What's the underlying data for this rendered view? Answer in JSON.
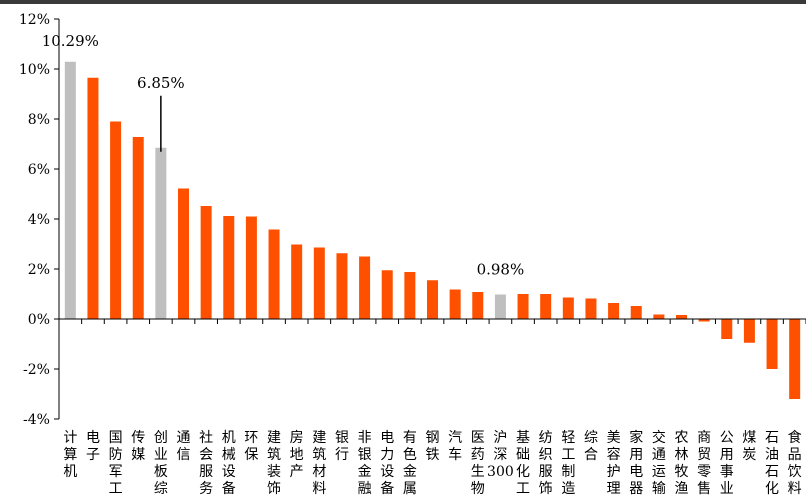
{
  "chart_data": {
    "type": "bar",
    "title": "",
    "xlabel": "",
    "ylabel": "",
    "ylim": [
      -4,
      12
    ],
    "yticks": [
      -4,
      -2,
      0,
      2,
      4,
      6,
      8,
      10,
      12
    ],
    "ytick_labels": [
      "-4%",
      "-2%",
      "0%",
      "2%",
      "4%",
      "6%",
      "8%",
      "10%",
      "12%"
    ],
    "categories": [
      "计算机",
      "电子",
      "国防军工",
      "传媒",
      "创业板综",
      "通信",
      "社会服务",
      "机械设备",
      "环保",
      "建筑装饰",
      "房地产",
      "建筑材料",
      "银行",
      "非银金融",
      "电力设备",
      "有色金属",
      "钢铁",
      "汽车",
      "医药生物",
      "沪深300",
      "基础化工",
      "纺织服饰",
      "轻工制造",
      "综合",
      "美容护理",
      "家用电器",
      "交通运输",
      "农林牧渔",
      "商贸零售",
      "公用事业",
      "煤炭",
      "石油石化",
      "食品饮料"
    ],
    "values": [
      10.29,
      9.65,
      7.9,
      7.28,
      6.85,
      5.22,
      4.52,
      4.12,
      4.1,
      3.58,
      2.98,
      2.86,
      2.63,
      2.5,
      1.95,
      1.88,
      1.55,
      1.18,
      1.08,
      0.98,
      1.0,
      1.0,
      0.86,
      0.82,
      0.64,
      0.52,
      0.18,
      0.16,
      -0.1,
      -0.8,
      -0.95,
      -2.0,
      -3.2
    ],
    "highlight": [
      "计算机",
      "创业板综",
      "沪深300"
    ],
    "annotations": [
      {
        "category": "计算机",
        "text": "10.29%"
      },
      {
        "category": "创业板综",
        "text": "6.85%"
      },
      {
        "category": "沪深300",
        "text": "0.98%"
      }
    ],
    "colors": {
      "bar": "#FF5000",
      "highlight": "#BFBFBF"
    },
    "grid": false
  }
}
